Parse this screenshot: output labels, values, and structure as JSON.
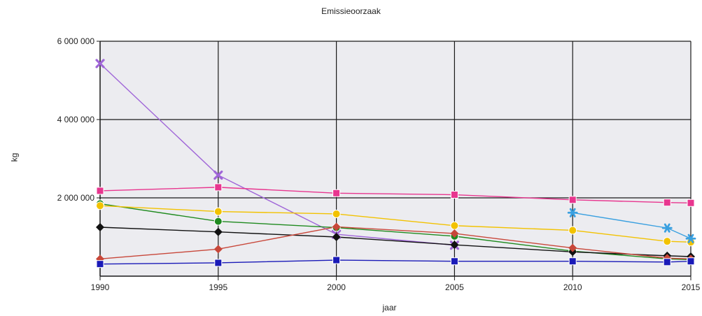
{
  "chart_data": {
    "type": "line",
    "title": "Emissieoorzaak",
    "xlabel": "jaar",
    "ylabel": "kg",
    "x": [
      1990,
      1995,
      2000,
      2005,
      2010,
      2014,
      2015
    ],
    "x_ticks": [
      1990,
      1995,
      2000,
      2005,
      2010,
      2015
    ],
    "y_ticks": [
      {
        "value": 2000000,
        "label": "2 000 000"
      },
      {
        "value": 4000000,
        "label": "4 000 000"
      },
      {
        "value": 6000000,
        "label": "6 000 000"
      }
    ],
    "xlim": [
      1990,
      2015
    ],
    "ylim": [
      0,
      6000000
    ],
    "grid": true,
    "plot_background": "#ececf0",
    "series": [
      {
        "color": "#a066d8",
        "marker": "x",
        "points": [
          [
            1990,
            5430000
          ],
          [
            1995,
            2580000
          ],
          [
            2000,
            1070000
          ],
          [
            2005,
            790000
          ]
        ]
      },
      {
        "color": "#e8368f",
        "marker": "square",
        "points": [
          [
            1990,
            2180000
          ],
          [
            1995,
            2270000
          ],
          [
            2000,
            2120000
          ],
          [
            2005,
            2080000
          ],
          [
            2010,
            1950000
          ],
          [
            2014,
            1880000
          ],
          [
            2015,
            1870000
          ]
        ]
      },
      {
        "color": "#1f8a1f",
        "marker": "circle",
        "points": [
          [
            1990,
            1850000
          ],
          [
            1995,
            1400000
          ],
          [
            2000,
            1240000
          ],
          [
            2005,
            1020000
          ],
          [
            2010,
            640000
          ],
          [
            2014,
            440000
          ],
          [
            2015,
            420000
          ]
        ]
      },
      {
        "color": "#f2c200",
        "marker": "circle",
        "points": [
          [
            1990,
            1800000
          ],
          [
            1995,
            1650000
          ],
          [
            2000,
            1590000
          ],
          [
            2005,
            1290000
          ],
          [
            2010,
            1170000
          ],
          [
            2014,
            890000
          ],
          [
            2015,
            870000
          ]
        ]
      },
      {
        "color": "#111111",
        "marker": "diamond",
        "points": [
          [
            1990,
            1250000
          ],
          [
            1995,
            1130000
          ],
          [
            2000,
            1000000
          ],
          [
            2005,
            800000
          ],
          [
            2010,
            620000
          ],
          [
            2014,
            520000
          ],
          [
            2015,
            500000
          ]
        ]
      },
      {
        "color": "#c8473a",
        "marker": "diamond",
        "points": [
          [
            1990,
            440000
          ],
          [
            1995,
            690000
          ],
          [
            2000,
            1260000
          ],
          [
            2005,
            1090000
          ],
          [
            2010,
            720000
          ],
          [
            2014,
            460000
          ],
          [
            2015,
            440000
          ]
        ]
      },
      {
        "color": "#1a1ab8",
        "marker": "square",
        "points": [
          [
            1990,
            310000
          ],
          [
            1995,
            340000
          ],
          [
            2000,
            410000
          ],
          [
            2005,
            380000
          ],
          [
            2010,
            380000
          ],
          [
            2014,
            360000
          ],
          [
            2015,
            380000
          ]
        ]
      },
      {
        "color": "#3aa0e0",
        "marker": "star",
        "points": [
          [
            2010,
            1620000
          ],
          [
            2014,
            1230000
          ],
          [
            2015,
            960000
          ]
        ]
      }
    ]
  }
}
